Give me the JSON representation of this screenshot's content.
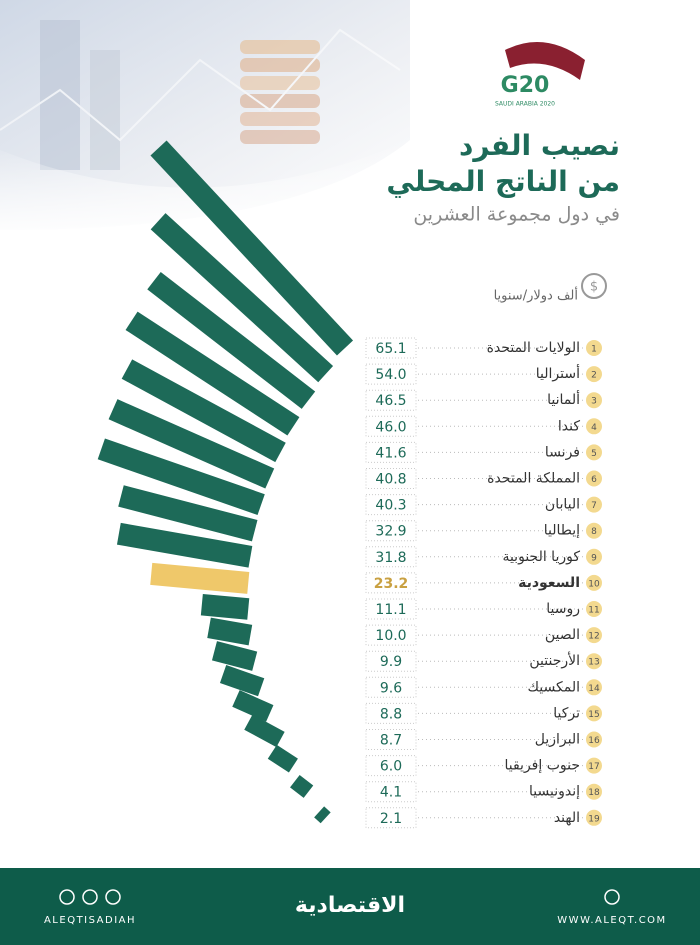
{
  "chart_data": {
    "type": "fan-bar",
    "title": [
      "نصيب الفرد",
      "من الناتج المحلي"
    ],
    "subtitle": "في دول مجموعة العشرين",
    "unit": "ألف دولار/سنويا",
    "logo": {
      "text": "G20",
      "subtext": "SAUDI ARABIA 2020"
    },
    "ranks": [
      1,
      2,
      3,
      4,
      5,
      6,
      7,
      8,
      9,
      10,
      11,
      12,
      13,
      14,
      15,
      16,
      17,
      18,
      19
    ],
    "categories": [
      "الولايات المتحدة",
      "أستراليا",
      "ألمانيا",
      "كندا",
      "فرنسا",
      "المملكة المتحدة",
      "اليابان",
      "إيطاليا",
      "كوريا الجنوبية",
      "السعودية",
      "روسيا",
      "الصين",
      "الأرجنتين",
      "المكسيك",
      "تركيا",
      "البرازيل",
      "جنوب إفريقيا",
      "إندونيسيا",
      "الهند"
    ],
    "values": [
      65.1,
      54.0,
      46.5,
      46.0,
      41.6,
      40.8,
      40.3,
      32.9,
      31.8,
      23.2,
      11.1,
      10.0,
      9.9,
      9.6,
      8.8,
      8.7,
      6.0,
      4.1,
      2.1
    ],
    "value_labels": [
      "65.1",
      "54.0",
      "46.5",
      "46.0",
      "41.6",
      "40.8",
      "40.3",
      "32.9",
      "31.8",
      "23.2",
      "11.1",
      "10.0",
      "9.9",
      "9.6",
      "8.8",
      "8.7",
      "6.0",
      "4.1",
      "2.1"
    ],
    "colors": [
      "#1d6a58",
      "#1d6a58",
      "#1d6a58",
      "#1d6a58",
      "#1d6a58",
      "#1d6a58",
      "#1d6a58",
      "#1d6a58",
      "#1d6a58",
      "#efc86a",
      "#1d6a58",
      "#1d6a58",
      "#1d6a58",
      "#1d6a58",
      "#1d6a58",
      "#1d6a58",
      "#1d6a58",
      "#1d6a58",
      "#1d6a58"
    ],
    "footer": {
      "handle": "ALEQTISADIAH",
      "brand": "الاقتصادية",
      "url": "WWW.ALEQT.COM"
    }
  }
}
